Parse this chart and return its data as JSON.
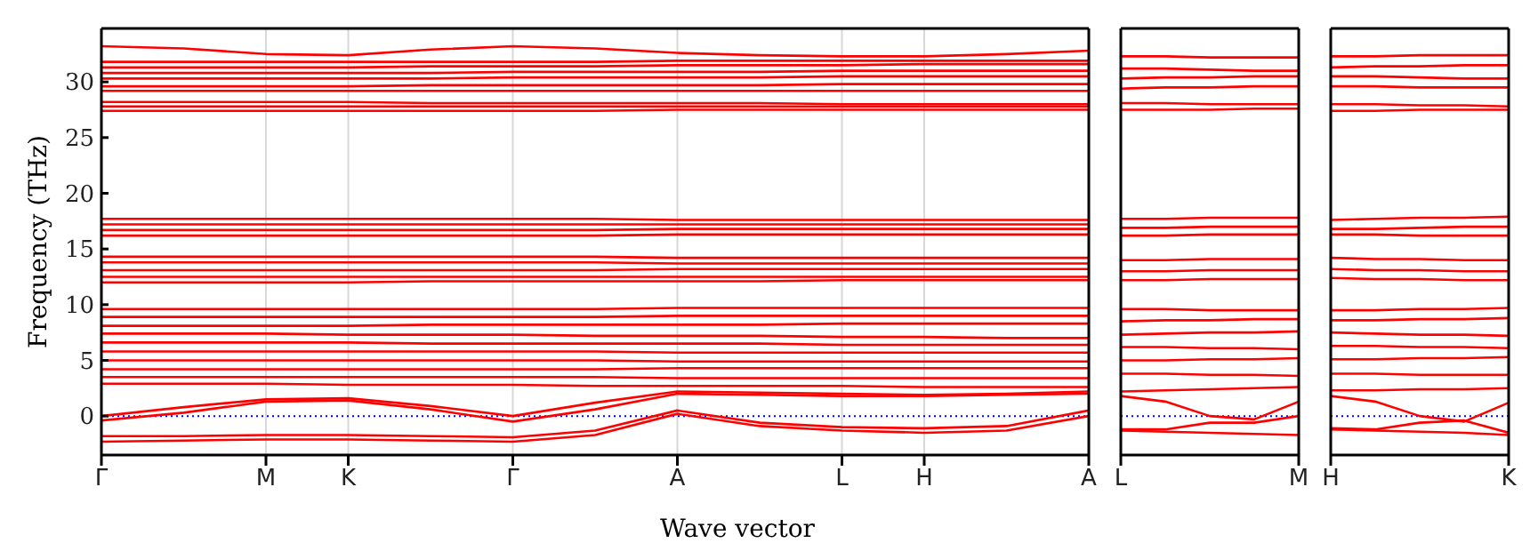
{
  "chart_data": [
    {
      "type": "line",
      "xlabel": "Wave vector",
      "ylabel": "Frequency (THz)",
      "ylim": [
        -3.5,
        34.8
      ],
      "categories": [
        "Γ",
        null,
        "M",
        "K",
        null,
        "Γ",
        null,
        "A",
        null,
        "L",
        "H",
        null,
        "A"
      ],
      "yticks": [
        0,
        5,
        10,
        15,
        20,
        25,
        30
      ],
      "grid": "x",
      "legend": false,
      "marker": "none",
      "line_style": "solid",
      "ref_lines": [
        {
          "axis": "y",
          "value": 0,
          "color": "#0000ff",
          "line_style": "dotted"
        }
      ],
      "series": [
        {
          "color": "#ff0000",
          "values": [
            33.2,
            33.0,
            32.5,
            32.4,
            32.9,
            33.2,
            33.0,
            32.6,
            32.4,
            32.3,
            32.3,
            32.5,
            32.8
          ]
        },
        {
          "color": "#ff0000",
          "values": [
            0,
            0.8,
            1.5,
            1.6,
            0.9,
            0,
            1.2,
            2.2,
            2.1,
            2.0,
            1.9,
            2.0,
            2.2
          ]
        },
        {
          "color": "#ff0000",
          "values": [
            -0.4,
            0.3,
            1.3,
            1.4,
            0.6,
            -0.5,
            0.6,
            2.0,
            1.9,
            1.8,
            1.8,
            1.9,
            2.0
          ]
        },
        {
          "color": "#ff0000",
          "values": [
            -1.8,
            -1.8,
            -1.7,
            -1.7,
            -1.8,
            -1.9,
            -1.3,
            0.5,
            -0.6,
            -1.0,
            -1.1,
            -0.9,
            0.5
          ]
        },
        {
          "color": "#ff0000",
          "values": [
            -2.3,
            -2.2,
            -2.1,
            -2.1,
            -2.2,
            -2.3,
            -1.7,
            0.2,
            -0.9,
            -1.3,
            -1.5,
            -1.3,
            0.0
          ]
        },
        {
          "color": "#ff0000",
          "values": [
            31.8,
            31.8,
            31.8,
            31.8,
            31.8,
            31.8,
            31.8,
            31.9,
            31.9,
            31.9,
            31.9,
            31.9,
            31.9
          ]
        },
        {
          "color": "#ff0000",
          "values": [
            31.3,
            31.3,
            31.3,
            31.3,
            31.4,
            31.4,
            31.4,
            31.5,
            31.5,
            31.5,
            31.6,
            31.6,
            31.6
          ]
        },
        {
          "color": "#ff0000",
          "values": [
            30.8,
            30.8,
            30.8,
            30.8,
            30.8,
            30.9,
            30.9,
            30.9,
            30.9,
            31.0,
            31.0,
            31.0,
            31.0
          ]
        },
        {
          "color": "#ff0000",
          "values": [
            30.3,
            30.3,
            30.3,
            30.3,
            30.3,
            30.4,
            30.4,
            30.4,
            30.4,
            30.5,
            30.5,
            30.5,
            30.5
          ]
        },
        {
          "color": "#ff0000",
          "values": [
            29.6,
            29.6,
            29.6,
            29.6,
            29.7,
            29.7,
            29.7,
            29.7,
            29.7,
            29.8,
            29.8,
            29.8,
            29.8
          ]
        },
        {
          "color": "#ff0000",
          "values": [
            29.2,
            29.2,
            29.2,
            29.2,
            29.2,
            29.2,
            29.2,
            29.2,
            29.2,
            29.2,
            29.2,
            29.2,
            29.2
          ]
        },
        {
          "color": "#ff0000",
          "values": [
            28.2,
            28.2,
            28.2,
            28.2,
            28.1,
            28.1,
            28.1,
            28.1,
            28.1,
            28.0,
            28.0,
            28.0,
            28.0
          ]
        },
        {
          "color": "#ff0000",
          "values": [
            27.8,
            27.8,
            27.8,
            27.8,
            27.8,
            27.8,
            27.8,
            27.8,
            27.8,
            27.8,
            27.8,
            27.8,
            27.8
          ]
        },
        {
          "color": "#ff0000",
          "values": [
            27.4,
            27.4,
            27.4,
            27.4,
            27.4,
            27.4,
            27.4,
            27.5,
            27.5,
            27.5,
            27.5,
            27.5,
            27.5
          ]
        },
        {
          "color": "#ff0000",
          "values": [
            17.7,
            17.7,
            17.7,
            17.7,
            17.7,
            17.7,
            17.7,
            17.6,
            17.6,
            17.6,
            17.6,
            17.6,
            17.6
          ]
        },
        {
          "color": "#ff0000",
          "values": [
            17.2,
            17.2,
            17.2,
            17.2,
            17.2,
            17.2,
            17.2,
            17.2,
            17.2,
            17.2,
            17.2,
            17.2,
            17.2
          ]
        },
        {
          "color": "#ff0000",
          "values": [
            16.7,
            16.7,
            16.7,
            16.7,
            16.7,
            16.7,
            16.7,
            16.8,
            16.8,
            16.8,
            16.8,
            16.8,
            16.8
          ]
        },
        {
          "color": "#ff0000",
          "values": [
            16.2,
            16.2,
            16.2,
            16.2,
            16.2,
            16.2,
            16.2,
            16.3,
            16.3,
            16.3,
            16.3,
            16.3,
            16.3
          ]
        },
        {
          "color": "#ff0000",
          "values": [
            14.3,
            14.3,
            14.3,
            14.3,
            14.3,
            14.3,
            14.3,
            14.2,
            14.2,
            14.2,
            14.2,
            14.2,
            14.2
          ]
        },
        {
          "color": "#ff0000",
          "values": [
            13.8,
            13.8,
            13.8,
            13.8,
            13.8,
            13.8,
            13.8,
            13.7,
            13.7,
            13.7,
            13.7,
            13.7,
            13.7
          ]
        },
        {
          "color": "#ff0000",
          "values": [
            13.1,
            13.1,
            13.1,
            13.1,
            13.1,
            13.1,
            13.1,
            13.2,
            13.2,
            13.2,
            13.2,
            13.2,
            13.2
          ]
        },
        {
          "color": "#ff0000",
          "values": [
            12.5,
            12.5,
            12.5,
            12.5,
            12.5,
            12.5,
            12.5,
            12.5,
            12.5,
            12.5,
            12.5,
            12.5,
            12.5
          ]
        },
        {
          "color": "#ff0000",
          "values": [
            12.0,
            12.0,
            12.0,
            12.0,
            12.1,
            12.1,
            12.1,
            12.1,
            12.1,
            12.2,
            12.2,
            12.2,
            12.2
          ]
        },
        {
          "color": "#ff0000",
          "values": [
            9.6,
            9.6,
            9.6,
            9.6,
            9.6,
            9.6,
            9.6,
            9.7,
            9.7,
            9.7,
            9.7,
            9.7,
            9.7
          ]
        },
        {
          "color": "#ff0000",
          "values": [
            8.9,
            8.9,
            8.9,
            8.9,
            8.9,
            8.9,
            8.9,
            9.0,
            9.0,
            9.0,
            9.0,
            9.0,
            9.0
          ]
        },
        {
          "color": "#ff0000",
          "values": [
            8.1,
            8.1,
            8.1,
            8.1,
            8.2,
            8.2,
            8.2,
            8.2,
            8.2,
            8.3,
            8.3,
            8.3,
            8.3
          ]
        },
        {
          "color": "#ff0000",
          "values": [
            7.4,
            7.4,
            7.4,
            7.3,
            7.3,
            7.3,
            7.2,
            7.2,
            7.2,
            7.1,
            7.1,
            7.0,
            7.0
          ]
        },
        {
          "color": "#ff0000",
          "values": [
            6.6,
            6.6,
            6.6,
            6.6,
            6.5,
            6.5,
            6.5,
            6.5,
            6.5,
            6.4,
            6.4,
            6.4,
            6.4
          ]
        },
        {
          "color": "#ff0000",
          "values": [
            5.8,
            5.8,
            5.8,
            5.8,
            5.8,
            5.8,
            5.8,
            5.7,
            5.7,
            5.7,
            5.7,
            5.7,
            5.7
          ]
        },
        {
          "color": "#ff0000",
          "values": [
            5.0,
            5.0,
            5.0,
            5.0,
            5.0,
            5.0,
            5.0,
            4.9,
            4.9,
            4.9,
            4.9,
            4.9,
            4.9
          ]
        },
        {
          "color": "#ff0000",
          "values": [
            4.2,
            4.2,
            4.2,
            4.2,
            4.2,
            4.2,
            4.2,
            4.3,
            4.3,
            4.3,
            4.3,
            4.3,
            4.3
          ]
        },
        {
          "color": "#ff0000",
          "values": [
            3.5,
            3.5,
            3.5,
            3.5,
            3.5,
            3.5,
            3.5,
            3.4,
            3.4,
            3.4,
            3.4,
            3.4,
            3.4
          ]
        },
        {
          "color": "#ff0000",
          "values": [
            2.9,
            2.9,
            2.9,
            2.8,
            2.8,
            2.8,
            2.7,
            2.7,
            2.7,
            2.7,
            2.6,
            2.6,
            2.6
          ]
        }
      ]
    },
    {
      "type": "line",
      "ylim": [
        -3.5,
        34.8
      ],
      "categories": [
        "L",
        null,
        null,
        null,
        "M"
      ],
      "yticks": [
        0,
        5,
        10,
        15,
        20,
        25,
        30
      ],
      "tick_labels": "x",
      "legend": false,
      "marker": "none",
      "line_style": "solid",
      "ref_lines": [
        {
          "axis": "y",
          "value": 0,
          "color": "#0000ff",
          "line_style": "dotted"
        }
      ],
      "series": [
        {
          "color": "#ff0000",
          "values": [
            1.8,
            1.3,
            0.0,
            -0.3,
            1.3
          ]
        },
        {
          "color": "#ff0000",
          "values": [
            -1.2,
            -1.2,
            -0.6,
            -0.6,
            0
          ]
        },
        {
          "color": "#ff0000",
          "values": [
            -1.3,
            -1.4,
            -1.5,
            -1.6,
            -1.7
          ]
        },
        {
          "color": "#ff0000",
          "values": [
            32.3,
            32.3,
            32.2,
            32.2,
            32.2
          ]
        },
        {
          "color": "#ff0000",
          "values": [
            31.2,
            31.2,
            31.1,
            31.0,
            31.0
          ]
        },
        {
          "color": "#ff0000",
          "values": [
            30.3,
            30.4,
            30.4,
            30.5,
            30.5
          ]
        },
        {
          "color": "#ff0000",
          "values": [
            29.4,
            29.5,
            29.5,
            29.6,
            29.6
          ]
        },
        {
          "color": "#ff0000",
          "values": [
            28.1,
            28.1,
            28.0,
            28.0,
            28.0
          ]
        },
        {
          "color": "#ff0000",
          "values": [
            27.5,
            27.5,
            27.5,
            27.6,
            27.6
          ]
        },
        {
          "color": "#ff0000",
          "values": [
            17.7,
            17.7,
            17.8,
            17.8,
            17.8
          ]
        },
        {
          "color": "#ff0000",
          "values": [
            16.9,
            16.9,
            17.0,
            17.0,
            17.0
          ]
        },
        {
          "color": "#ff0000",
          "values": [
            16.2,
            16.2,
            16.3,
            16.3,
            16.3
          ]
        },
        {
          "color": "#ff0000",
          "values": [
            14.0,
            14.0,
            14.1,
            14.1,
            14.1
          ]
        },
        {
          "color": "#ff0000",
          "values": [
            13.0,
            13.0,
            13.1,
            13.1,
            13.1
          ]
        },
        {
          "color": "#ff0000",
          "values": [
            12.2,
            12.2,
            12.3,
            12.3,
            12.3
          ]
        },
        {
          "color": "#ff0000",
          "values": [
            9.6,
            9.6,
            9.5,
            9.5,
            9.5
          ]
        },
        {
          "color": "#ff0000",
          "values": [
            8.5,
            8.6,
            8.6,
            8.7,
            8.7
          ]
        },
        {
          "color": "#ff0000",
          "values": [
            7.3,
            7.4,
            7.5,
            7.5,
            7.6
          ]
        },
        {
          "color": "#ff0000",
          "values": [
            6.2,
            6.2,
            6.1,
            6.1,
            6.0
          ]
        },
        {
          "color": "#ff0000",
          "values": [
            5.0,
            5.0,
            5.1,
            5.1,
            5.2
          ]
        },
        {
          "color": "#ff0000",
          "values": [
            3.8,
            3.8,
            3.7,
            3.7,
            3.6
          ]
        },
        {
          "color": "#ff0000",
          "values": [
            2.2,
            2.3,
            2.4,
            2.5,
            2.6
          ]
        }
      ]
    },
    {
      "type": "line",
      "ylim": [
        -3.5,
        34.8
      ],
      "categories": [
        "H",
        null,
        null,
        null,
        "K"
      ],
      "yticks": [
        0,
        5,
        10,
        15,
        20,
        25,
        30
      ],
      "tick_labels": "x",
      "legend": false,
      "marker": "none",
      "line_style": "solid",
      "ref_lines": [
        {
          "axis": "y",
          "value": 0,
          "color": "#0000ff",
          "line_style": "dotted"
        }
      ],
      "series": [
        {
          "color": "#ff0000",
          "values": [
            1.8,
            1.3,
            0.0,
            -0.5,
            1.2
          ]
        },
        {
          "color": "#ff0000",
          "values": [
            -1.1,
            -1.2,
            -0.6,
            -0.4,
            -1.5
          ]
        },
        {
          "color": "#ff0000",
          "values": [
            -1.2,
            -1.3,
            -1.4,
            -1.5,
            -1.7
          ]
        },
        {
          "color": "#ff0000",
          "values": [
            32.3,
            32.3,
            32.4,
            32.4,
            32.4
          ]
        },
        {
          "color": "#ff0000",
          "values": [
            31.3,
            31.4,
            31.4,
            31.5,
            31.5
          ]
        },
        {
          "color": "#ff0000",
          "values": [
            30.5,
            30.5,
            30.4,
            30.3,
            30.3
          ]
        },
        {
          "color": "#ff0000",
          "values": [
            29.6,
            29.6,
            29.5,
            29.5,
            29.5
          ]
        },
        {
          "color": "#ff0000",
          "values": [
            28.0,
            28.0,
            27.9,
            27.9,
            27.8
          ]
        },
        {
          "color": "#ff0000",
          "values": [
            27.4,
            27.4,
            27.5,
            27.5,
            27.5
          ]
        },
        {
          "color": "#ff0000",
          "values": [
            17.6,
            17.7,
            17.8,
            17.8,
            17.9
          ]
        },
        {
          "color": "#ff0000",
          "values": [
            16.8,
            16.8,
            16.9,
            17.0,
            17.0
          ]
        },
        {
          "color": "#ff0000",
          "values": [
            16.3,
            16.3,
            16.2,
            16.2,
            16.2
          ]
        },
        {
          "color": "#ff0000",
          "values": [
            14.2,
            14.1,
            14.1,
            14.0,
            14.0
          ]
        },
        {
          "color": "#ff0000",
          "values": [
            13.2,
            13.1,
            13.1,
            13.0,
            13.0
          ]
        },
        {
          "color": "#ff0000",
          "values": [
            12.4,
            12.3,
            12.3,
            12.2,
            12.2
          ]
        },
        {
          "color": "#ff0000",
          "values": [
            9.5,
            9.5,
            9.6,
            9.6,
            9.7
          ]
        },
        {
          "color": "#ff0000",
          "values": [
            8.6,
            8.6,
            8.7,
            8.7,
            8.8
          ]
        },
        {
          "color": "#ff0000",
          "values": [
            7.5,
            7.4,
            7.3,
            7.3,
            7.2
          ]
        },
        {
          "color": "#ff0000",
          "values": [
            6.3,
            6.3,
            6.2,
            6.2,
            6.1
          ]
        },
        {
          "color": "#ff0000",
          "values": [
            5.1,
            5.1,
            5.2,
            5.2,
            5.3
          ]
        },
        {
          "color": "#ff0000",
          "values": [
            3.8,
            3.8,
            3.7,
            3.7,
            3.7
          ]
        },
        {
          "color": "#ff0000",
          "values": [
            2.3,
            2.3,
            2.4,
            2.4,
            2.5
          ]
        }
      ]
    }
  ]
}
